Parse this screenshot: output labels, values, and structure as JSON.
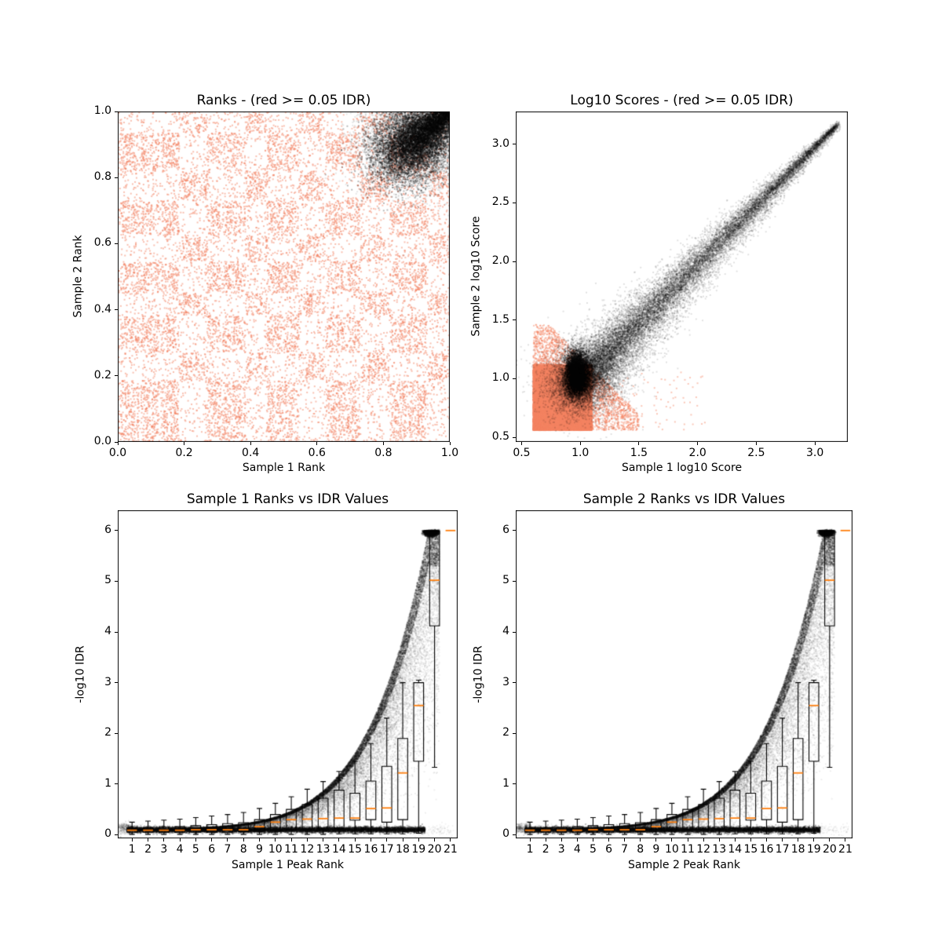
{
  "figure": {
    "background": "#ffffff",
    "kind": "IDR quality-control 2x2 scatter figure"
  },
  "colors": {
    "nonsignificant_scatter": "#F48262",
    "significant_scatter": "#000000",
    "box_line": "#000000",
    "box_median": "#FF7F0E",
    "axis": "#000000"
  },
  "chart_data": [
    {
      "id": "ranks",
      "type": "scatter",
      "title": "Ranks - (red >= 0.05 IDR)",
      "xlabel": "Sample 1 Rank",
      "ylabel": "Sample 2 Rank",
      "xlim": [
        0.0,
        1.0
      ],
      "ylim": [
        0.0,
        1.0
      ],
      "xtick_labels": [
        "0.0",
        "0.2",
        "0.4",
        "0.6",
        "0.8",
        "1.0"
      ],
      "ytick_labels": [
        "0.0",
        "0.2",
        "0.4",
        "0.6",
        "0.8",
        "1.0"
      ],
      "grid": false,
      "legend": "none",
      "series": [
        {
          "name": "idr >= 0.05",
          "color": "#F48262",
          "description": "dense checkerboard-like blocks of non-reproducible peak ranks covering the full unit square",
          "block_edges": [
            0.0,
            0.185,
            0.27,
            0.385,
            0.45,
            0.545,
            0.625,
            0.73,
            0.82,
            0.935,
            1.0
          ],
          "dense_block_density": 0.95,
          "sparse_block_density": 0.28,
          "n_points": 30000
        },
        {
          "name": "idr < 0.05",
          "color": "#000000",
          "description": "teardrop cluster of reproducible peaks converging to (1,1)",
          "apex": [
            1.0,
            1.0
          ],
          "core_center": [
            0.845,
            0.862
          ],
          "x_range": [
            0.74,
            1.0
          ],
          "y_range": [
            0.74,
            1.0
          ],
          "n_points": 12000
        }
      ]
    },
    {
      "id": "log10_scores",
      "type": "scatter",
      "title": "Log10 Scores - (red >= 0.05 IDR)",
      "xlabel": "Sample 1 log10 Score",
      "ylabel": "Sample 2 log10 Score",
      "xlim": [
        0.45,
        3.28
      ],
      "ylim": [
        0.46,
        3.28
      ],
      "xtick_labels": [
        "0.5",
        "1.0",
        "1.5",
        "2.0",
        "2.5",
        "3.0"
      ],
      "ytick_labels": [
        "0.5",
        "1.0",
        "1.5",
        "2.0",
        "2.5",
        "3.0"
      ],
      "grid": false,
      "legend": "none",
      "series": [
        {
          "name": "idr >= 0.05",
          "color": "#F48262",
          "description": "very dense low-score blob",
          "core_x": [
            0.6,
            1.08
          ],
          "core_y": [
            0.56,
            1.1
          ],
          "fade_to": [
            1.45,
            1.45
          ],
          "n_points": 26000
        },
        {
          "name": "idr < 0.05",
          "color": "#000000",
          "description": "diagonal comet from (0.95,0.95) to (3.17,3.17); wide dense at low scores, thin at high scores",
          "start": [
            0.93,
            0.93
          ],
          "end": [
            3.17,
            3.17
          ],
          "knot_center": [
            0.97,
            1.05
          ],
          "n_points": 26000
        }
      ]
    },
    {
      "id": "sample1_rank_vs_idr",
      "type": "scatter+box",
      "title": "Sample 1 Ranks vs IDR Values",
      "xlabel": "Sample 1 Peak Rank",
      "ylabel": "-log10 IDR",
      "xlim": [
        0.1,
        21.45
      ],
      "ylim": [
        -0.07,
        6.4
      ],
      "xtick_labels": [
        "1",
        "2",
        "3",
        "4",
        "5",
        "6",
        "7",
        "8",
        "9",
        "10",
        "11",
        "12",
        "13",
        "14",
        "15",
        "16",
        "17",
        "18",
        "19",
        "20",
        "21"
      ],
      "ytick_labels": [
        "0",
        "1",
        "2",
        "3",
        "4",
        "5",
        "6"
      ],
      "grid": false,
      "legend": "none",
      "scatter": {
        "color": "#000000",
        "x_range": [
          0.6,
          21.2
        ],
        "bottom_band_y": [
          0.05,
          0.15
        ],
        "envelope": {
          "a": 6.2,
          "p1": 5.4,
          "b": 0.32,
          "p2": 1.5,
          "c": 0.09,
          "cap": 6.02
        },
        "cap_cluster": {
          "x": [
            19.2,
            20.4
          ],
          "y": 6.0
        },
        "seed": 33
      },
      "boxplots": {
        "ranks": [
          1,
          2,
          3,
          4,
          5,
          6,
          7,
          8,
          9,
          10,
          11,
          12,
          13,
          14,
          15,
          16,
          17,
          18,
          19,
          20,
          21
        ],
        "median": [
          0.09,
          0.09,
          0.09,
          0.09,
          0.1,
          0.1,
          0.1,
          0.1,
          0.16,
          0.25,
          0.3,
          0.31,
          0.32,
          0.33,
          0.33,
          0.52,
          0.53,
          1.22,
          2.55,
          5.02,
          6.0
        ],
        "q1": [
          0.05,
          0.05,
          0.05,
          0.05,
          0.05,
          0.05,
          0.05,
          0.06,
          0.07,
          0.08,
          0.1,
          0.11,
          0.12,
          0.13,
          0.29,
          0.3,
          0.25,
          0.3,
          1.45,
          4.12,
          6.0
        ],
        "q3": [
          0.13,
          0.14,
          0.15,
          0.16,
          0.18,
          0.2,
          0.22,
          0.24,
          0.3,
          0.4,
          0.5,
          0.6,
          0.72,
          0.88,
          0.82,
          1.06,
          1.35,
          1.9,
          3.0,
          5.98,
          6.0
        ],
        "whisker_low": [
          0.01,
          0.01,
          0.01,
          0.01,
          0.01,
          0.01,
          0.01,
          0.01,
          0.01,
          0.01,
          0.01,
          0.01,
          0.01,
          0.02,
          0.02,
          0.02,
          0.02,
          0.02,
          0.03,
          1.33,
          6.0
        ],
        "whisker_high": [
          0.25,
          0.27,
          0.29,
          0.31,
          0.34,
          0.37,
          0.4,
          0.44,
          0.52,
          0.62,
          0.75,
          0.9,
          1.05,
          1.25,
          1.45,
          1.8,
          2.3,
          3.0,
          3.05,
          6.0,
          6.0
        ]
      }
    },
    {
      "id": "sample2_rank_vs_idr",
      "type": "scatter+box",
      "title": "Sample 2 Ranks vs IDR Values",
      "xlabel": "Sample 2 Peak Rank",
      "ylabel": "-log10 IDR",
      "xlim": [
        0.1,
        21.45
      ],
      "ylim": [
        -0.07,
        6.4
      ],
      "xtick_labels": [
        "1",
        "2",
        "3",
        "4",
        "5",
        "6",
        "7",
        "8",
        "9",
        "10",
        "11",
        "12",
        "13",
        "14",
        "15",
        "16",
        "17",
        "18",
        "19",
        "20",
        "21"
      ],
      "ytick_labels": [
        "0",
        "1",
        "2",
        "3",
        "4",
        "5",
        "6"
      ],
      "grid": false,
      "legend": "none",
      "scatter": {
        "color": "#000000",
        "x_range": [
          0.6,
          21.2
        ],
        "bottom_band_y": [
          0.05,
          0.15
        ],
        "envelope": {
          "a": 6.2,
          "p1": 5.4,
          "b": 0.32,
          "p2": 1.5,
          "c": 0.09,
          "cap": 6.02
        },
        "cap_cluster": {
          "x": [
            19.2,
            20.4
          ],
          "y": 6.0
        },
        "seed": 44
      },
      "boxplots": {
        "ranks": [
          1,
          2,
          3,
          4,
          5,
          6,
          7,
          8,
          9,
          10,
          11,
          12,
          13,
          14,
          15,
          16,
          17,
          18,
          19,
          20,
          21
        ],
        "median": [
          0.09,
          0.09,
          0.09,
          0.09,
          0.1,
          0.1,
          0.1,
          0.1,
          0.16,
          0.25,
          0.3,
          0.31,
          0.32,
          0.33,
          0.33,
          0.52,
          0.53,
          1.22,
          2.55,
          5.02,
          6.0
        ],
        "q1": [
          0.05,
          0.05,
          0.05,
          0.05,
          0.05,
          0.05,
          0.05,
          0.06,
          0.07,
          0.08,
          0.1,
          0.11,
          0.12,
          0.13,
          0.29,
          0.3,
          0.25,
          0.3,
          1.45,
          4.12,
          6.0
        ],
        "q3": [
          0.13,
          0.14,
          0.15,
          0.16,
          0.18,
          0.2,
          0.22,
          0.24,
          0.3,
          0.4,
          0.5,
          0.6,
          0.72,
          0.88,
          0.82,
          1.06,
          1.35,
          1.9,
          3.0,
          5.98,
          6.0
        ],
        "whisker_low": [
          0.01,
          0.01,
          0.01,
          0.01,
          0.01,
          0.01,
          0.01,
          0.01,
          0.01,
          0.01,
          0.01,
          0.01,
          0.01,
          0.02,
          0.02,
          0.02,
          0.02,
          0.02,
          0.03,
          1.33,
          6.0
        ],
        "whisker_high": [
          0.25,
          0.27,
          0.29,
          0.31,
          0.34,
          0.37,
          0.4,
          0.44,
          0.52,
          0.62,
          0.75,
          0.9,
          1.05,
          1.25,
          1.45,
          1.8,
          2.3,
          3.0,
          3.05,
          6.0,
          6.0
        ]
      }
    }
  ]
}
